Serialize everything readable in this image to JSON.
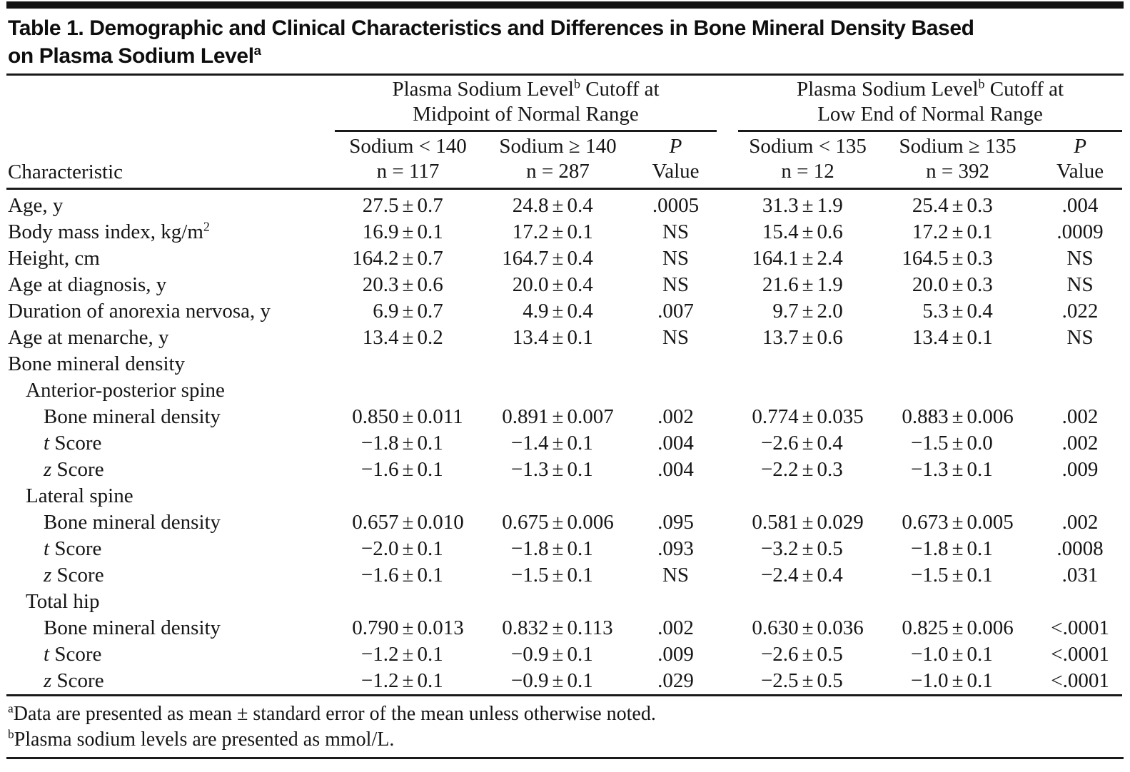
{
  "title": {
    "line1": "Table 1. Demographic and Clinical Characteristics and Differences in Bone Mineral Density Based",
    "line2": "on Plasma Sodium Level",
    "sup": "a"
  },
  "header": {
    "characteristic": "Characteristic",
    "groups": [
      {
        "line1_pre": "Plasma Sodium Level",
        "sup": "b",
        "line1_post": " Cutoff at",
        "line2": "Midpoint of Normal Range"
      },
      {
        "line1_pre": "Plasma Sodium Level",
        "sup": "b",
        "line1_post": " Cutoff at",
        "line2": "Low End of Normal Range"
      }
    ],
    "columns": [
      {
        "line1": "Sodium < 140",
        "line2": "n = 117"
      },
      {
        "line1": "Sodium ≥ 140",
        "line2": "n = 287"
      },
      {
        "line1": "P",
        "line2": "Value",
        "italic": true
      },
      {
        "line1": "Sodium < 135",
        "line2": "n = 12"
      },
      {
        "line1": "Sodium ≥ 135",
        "line2": "n = 392"
      },
      {
        "line1": "P",
        "line2": "Value",
        "italic": true
      }
    ]
  },
  "rows": [
    {
      "indent": 0,
      "label_italic": "",
      "label": "Age, y",
      "label_sup": "",
      "values": [
        "27.5 ± 0.7",
        "24.8 ± 0.4",
        ".0005",
        "31.3 ± 1.9",
        "25.4 ± 0.3",
        ".004"
      ]
    },
    {
      "indent": 0,
      "label_italic": "",
      "label": "Body mass index, kg/m",
      "label_sup": "2",
      "values": [
        "16.9 ± 0.1",
        "17.2 ± 0.1",
        "NS",
        "15.4 ± 0.6",
        "17.2 ± 0.1",
        ".0009"
      ]
    },
    {
      "indent": 0,
      "label_italic": "",
      "label": "Height, cm",
      "label_sup": "",
      "values": [
        "164.2 ± 0.7",
        "164.7 ± 0.4",
        "NS",
        "164.1 ± 2.4",
        "164.5 ± 0.3",
        "NS"
      ]
    },
    {
      "indent": 0,
      "label_italic": "",
      "label": "Age at diagnosis, y",
      "label_sup": "",
      "values": [
        "20.3 ± 0.6",
        "20.0 ± 0.4",
        "NS",
        "21.6 ± 1.9",
        "20.0 ± 0.3",
        "NS"
      ]
    },
    {
      "indent": 0,
      "label_italic": "",
      "label": "Duration of anorexia nervosa, y",
      "label_sup": "",
      "values": [
        "6.9 ± 0.7",
        "4.9 ± 0.4",
        ".007",
        "9.7 ± 2.0",
        "5.3 ± 0.4",
        ".022"
      ]
    },
    {
      "indent": 0,
      "label_italic": "",
      "label": "Age at menarche, y",
      "label_sup": "",
      "values": [
        "13.4 ± 0.2",
        "13.4 ± 0.1",
        "NS",
        "13.7 ± 0.6",
        "13.4 ± 0.1",
        "NS"
      ]
    },
    {
      "indent": 0,
      "label_italic": "",
      "label": "Bone mineral density",
      "label_sup": "",
      "values": [
        "",
        "",
        "",
        "",
        "",
        ""
      ]
    },
    {
      "indent": 1,
      "label_italic": "",
      "label": "Anterior-posterior spine",
      "label_sup": "",
      "values": [
        "",
        "",
        "",
        "",
        "",
        ""
      ]
    },
    {
      "indent": 2,
      "label_italic": "",
      "label": "Bone mineral density",
      "label_sup": "",
      "values": [
        "0.850 ± 0.011",
        "0.891 ± 0.007",
        ".002",
        "0.774 ± 0.035",
        "0.883 ± 0.006",
        ".002"
      ]
    },
    {
      "indent": 2,
      "label_italic": "t",
      "label": " Score",
      "label_sup": "",
      "values": [
        "−1.8 ± 0.1",
        "−1.4 ± 0.1",
        ".004",
        "−2.6 ± 0.4",
        "−1.5 ± 0.0",
        ".002"
      ]
    },
    {
      "indent": 2,
      "label_italic": "z",
      "label": " Score",
      "label_sup": "",
      "values": [
        "−1.6 ± 0.1",
        "−1.3 ± 0.1",
        ".004",
        "−2.2 ± 0.3",
        "−1.3 ± 0.1",
        ".009"
      ]
    },
    {
      "indent": 1,
      "label_italic": "",
      "label": "Lateral spine",
      "label_sup": "",
      "values": [
        "",
        "",
        "",
        "",
        "",
        ""
      ]
    },
    {
      "indent": 2,
      "label_italic": "",
      "label": "Bone mineral density",
      "label_sup": "",
      "values": [
        "0.657 ± 0.010",
        "0.675 ± 0.006",
        ".095",
        "0.581 ± 0.029",
        "0.673 ± 0.005",
        ".002"
      ]
    },
    {
      "indent": 2,
      "label_italic": "t",
      "label": " Score",
      "label_sup": "",
      "values": [
        "−2.0 ± 0.1",
        "−1.8 ± 0.1",
        ".093",
        "−3.2 ± 0.5",
        "−1.8 ± 0.1",
        ".0008"
      ]
    },
    {
      "indent": 2,
      "label_italic": "z",
      "label": " Score",
      "label_sup": "",
      "values": [
        "−1.6 ± 0.1",
        "−1.5 ± 0.1",
        "NS",
        "−2.4 ± 0.4",
        "−1.5 ± 0.1",
        ".031"
      ]
    },
    {
      "indent": 1,
      "label_italic": "",
      "label": "Total hip",
      "label_sup": "",
      "values": [
        "",
        "",
        "",
        "",
        "",
        ""
      ]
    },
    {
      "indent": 2,
      "label_italic": "",
      "label": "Bone mineral density",
      "label_sup": "",
      "values": [
        "0.790 ± 0.013",
        "0.832 ± 0.113",
        ".002",
        "0.630 ± 0.036",
        "0.825 ± 0.006",
        "<.0001"
      ]
    },
    {
      "indent": 2,
      "label_italic": "t",
      "label": " Score",
      "label_sup": "",
      "values": [
        "−1.2 ± 0.1",
        "−0.9 ± 0.1",
        ".009",
        "−2.6 ± 0.5",
        "−1.0 ± 0.1",
        "<.0001"
      ]
    },
    {
      "indent": 2,
      "label_italic": "z",
      "label": " Score",
      "label_sup": "",
      "values": [
        "−1.2 ± 0.1",
        "−0.9 ± 0.1",
        ".029",
        "−2.5 ± 0.5",
        "−1.0 ± 0.1",
        "<.0001"
      ]
    }
  ],
  "footnotes": [
    {
      "sup": "a",
      "text": "Data are presented as mean ± standard error of the mean unless otherwise noted."
    },
    {
      "sup": "b",
      "text": "Plasma sodium levels are presented as mmol/L."
    }
  ],
  "colors": {
    "background": "#ffffff",
    "text": "#161616",
    "rule": "#1a1a1a"
  }
}
